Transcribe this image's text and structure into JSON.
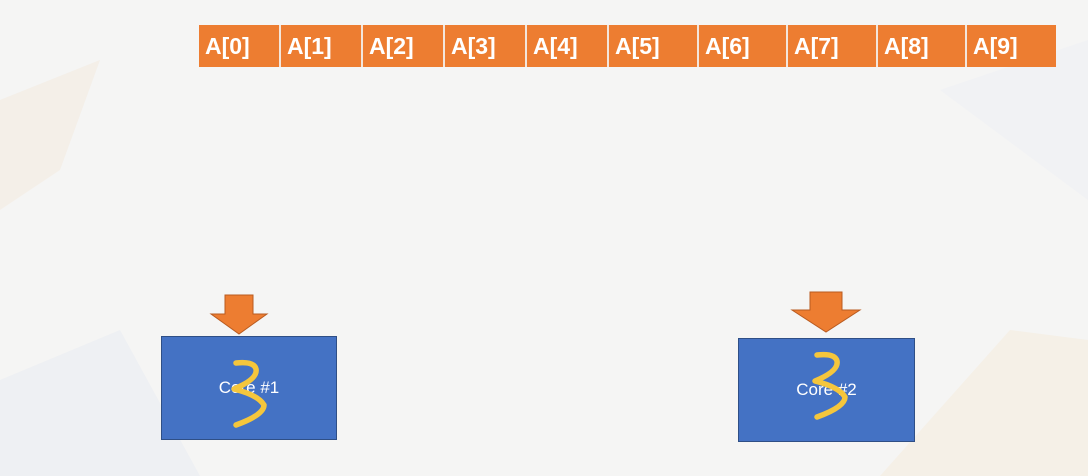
{
  "array": {
    "cells": [
      "A[0]",
      "A[1]",
      "A[2]",
      "A[3]",
      "A[4]",
      "A[5]",
      "A[6]",
      "A[7]",
      "A[8]",
      "A[9]"
    ]
  },
  "cores": [
    {
      "label": "Core #1"
    },
    {
      "label": "Core #2"
    }
  ],
  "colors": {
    "cell_fill": "#ed7d31",
    "core_fill": "#4472c4",
    "arrow_fill": "#ed7d31",
    "thread_stroke": "#f5c63c"
  }
}
